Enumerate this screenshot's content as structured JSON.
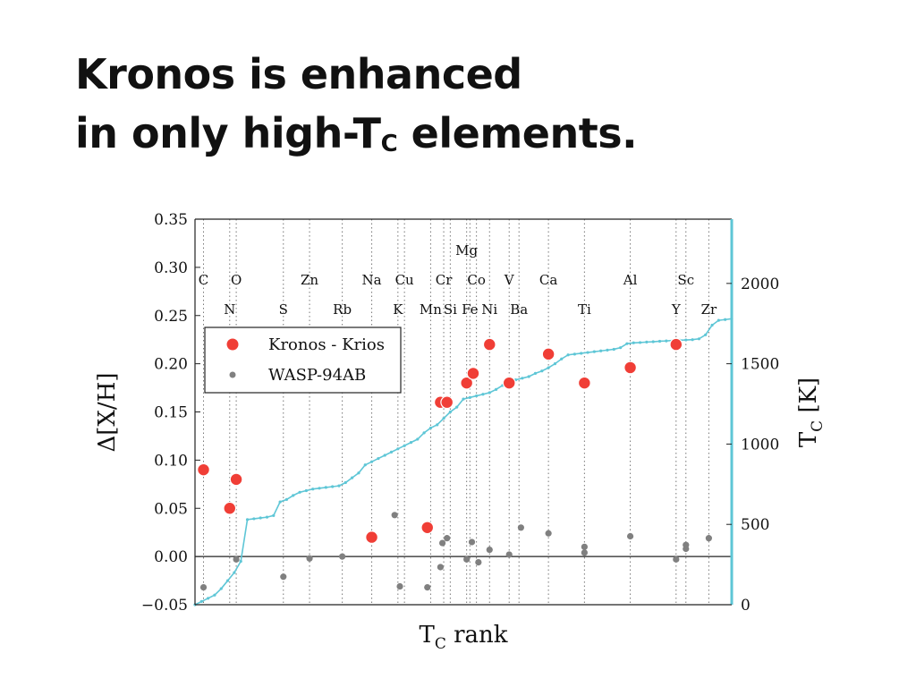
{
  "slide": {
    "title_line1": "Kronos is enhanced",
    "title_line2_pre": "in only high-T",
    "title_line2_sub": "C",
    "title_line2_post": " elements."
  },
  "chart_data": {
    "type": "scatter",
    "xlabel": "T",
    "xlabel_sub": "C",
    "xlabel_post": " rank",
    "ylabel": "Δ[X/H]",
    "ylabel_right": "T",
    "ylabel_right_sub": "C",
    "ylabel_right_post": " [K]",
    "ylim": [
      -0.05,
      0.35
    ],
    "yticks": [
      -0.05,
      0.0,
      0.05,
      0.1,
      0.15,
      0.2,
      0.25,
      0.3,
      0.35
    ],
    "ytick_labels": [
      "−0.05",
      "0.00",
      "0.05",
      "0.10",
      "0.15",
      "0.20",
      "0.25",
      "0.30",
      "0.35"
    ],
    "y2lim": [
      0,
      2400
    ],
    "y2ticks": [
      0,
      500,
      1000,
      1500,
      2000
    ],
    "y2tick_labels": [
      "0",
      "500",
      "1000",
      "1500",
      "2000"
    ],
    "xlim": [
      0,
      82
    ],
    "zero_line": true,
    "legend": {
      "placement": "upper-left",
      "entries": [
        "Kronos - Krios",
        "WASP-94AB"
      ]
    },
    "element_columns": [
      {
        "label": "C",
        "rank": 1.3,
        "row": 1
      },
      {
        "label": "N",
        "rank": 5.3,
        "row": 3
      },
      {
        "label": "O",
        "rank": 6.3,
        "row": 1
      },
      {
        "label": "S",
        "rank": 13.5,
        "row": 3
      },
      {
        "label": "Zn",
        "rank": 17.5,
        "row": 1
      },
      {
        "label": "Rb",
        "rank": 22.5,
        "row": 3
      },
      {
        "label": "Na",
        "rank": 27,
        "row": 1
      },
      {
        "label": "K",
        "rank": 31,
        "row": 3
      },
      {
        "label": "Cu",
        "rank": 32,
        "row": 1
      },
      {
        "label": "Mn",
        "rank": 36,
        "row": 3
      },
      {
        "label": "Cr",
        "rank": 38,
        "row": 1
      },
      {
        "label": "Si",
        "rank": 39,
        "row": 3
      },
      {
        "label": "Mg",
        "rank": 41.5,
        "row": 0
      },
      {
        "label": "Fe",
        "rank": 42,
        "row": 3
      },
      {
        "label": "Co",
        "rank": 43,
        "row": 1
      },
      {
        "label": "Ni",
        "rank": 45,
        "row": 3
      },
      {
        "label": "V",
        "rank": 48,
        "row": 1
      },
      {
        "label": "Ba",
        "rank": 49.5,
        "row": 3
      },
      {
        "label": "Ca",
        "rank": 54,
        "row": 1
      },
      {
        "label": "Ti",
        "rank": 59.5,
        "row": 3
      },
      {
        "label": "Al",
        "rank": 66.5,
        "row": 1
      },
      {
        "label": "Y",
        "rank": 73.5,
        "row": 3
      },
      {
        "label": "Sc",
        "rank": 75,
        "row": 1
      },
      {
        "label": "Zr",
        "rank": 78.5,
        "row": 3
      }
    ],
    "series": [
      {
        "name": "Kronos - Krios",
        "color": "#f03e36",
        "points": [
          {
            "x": 1.3,
            "y": 0.09
          },
          {
            "x": 5.3,
            "y": 0.05
          },
          {
            "x": 6.3,
            "y": 0.08
          },
          {
            "x": 27,
            "y": 0.02
          },
          {
            "x": 35.5,
            "y": 0.03
          },
          {
            "x": 37.5,
            "y": 0.16
          },
          {
            "x": 38.5,
            "y": 0.16
          },
          {
            "x": 41.5,
            "y": 0.18
          },
          {
            "x": 42.5,
            "y": 0.19
          },
          {
            "x": 45,
            "y": 0.22
          },
          {
            "x": 48,
            "y": 0.18
          },
          {
            "x": 54,
            "y": 0.21
          },
          {
            "x": 59.5,
            "y": 0.18
          },
          {
            "x": 66.5,
            "y": 0.196
          },
          {
            "x": 73.5,
            "y": 0.22
          }
        ]
      },
      {
        "name": "WASP-94AB",
        "color": "#808080",
        "points": [
          {
            "x": 1.3,
            "y": -0.032
          },
          {
            "x": 6.3,
            "y": -0.003
          },
          {
            "x": 13.5,
            "y": -0.021
          },
          {
            "x": 17.5,
            "y": -0.002
          },
          {
            "x": 22.5,
            "y": 0.0
          },
          {
            "x": 30.5,
            "y": 0.043
          },
          {
            "x": 31.3,
            "y": -0.031
          },
          {
            "x": 35.5,
            "y": -0.032
          },
          {
            "x": 37.5,
            "y": -0.011
          },
          {
            "x": 37.8,
            "y": 0.014
          },
          {
            "x": 38.5,
            "y": 0.019
          },
          {
            "x": 41.5,
            "y": -0.003
          },
          {
            "x": 42.3,
            "y": 0.015
          },
          {
            "x": 43.3,
            "y": -0.006
          },
          {
            "x": 45,
            "y": 0.007
          },
          {
            "x": 48,
            "y": 0.002
          },
          {
            "x": 49.8,
            "y": 0.03
          },
          {
            "x": 54,
            "y": 0.024
          },
          {
            "x": 59.5,
            "y": 0.01
          },
          {
            "x": 59.5,
            "y": 0.004
          },
          {
            "x": 66.5,
            "y": 0.021
          },
          {
            "x": 73.5,
            "y": -0.003
          },
          {
            "x": 75,
            "y": 0.012
          },
          {
            "x": 75,
            "y": 0.008
          },
          {
            "x": 78.5,
            "y": 0.019
          }
        ]
      },
      {
        "name": "",
        "axis": "right",
        "color": "#5ec6d6",
        "x": [
          0,
          1,
          2,
          3,
          4,
          5,
          6,
          7,
          8,
          9,
          10,
          11,
          12,
          13,
          14,
          15,
          16,
          17,
          18,
          19,
          20,
          21,
          22,
          23,
          24,
          25,
          26,
          27,
          28,
          29,
          30,
          31,
          32,
          33,
          34,
          35,
          36,
          37,
          38,
          39,
          40,
          41,
          42,
          43,
          44,
          45,
          46,
          47,
          48,
          49,
          50,
          51,
          52,
          53,
          54,
          55,
          56,
          57,
          58,
          59,
          60,
          61,
          62,
          63,
          64,
          65,
          66,
          67,
          68,
          69,
          70,
          71,
          72,
          73,
          74,
          75,
          76,
          77,
          78,
          79,
          80,
          81,
          82
        ],
        "y": [
          0,
          20,
          40,
          60,
          100,
          150,
          200,
          270,
          530,
          535,
          540,
          545,
          555,
          640,
          655,
          680,
          700,
          710,
          720,
          725,
          730,
          735,
          740,
          760,
          790,
          820,
          870,
          890,
          910,
          930,
          950,
          970,
          990,
          1010,
          1030,
          1070,
          1100,
          1120,
          1160,
          1200,
          1230,
          1280,
          1290,
          1300,
          1310,
          1320,
          1340,
          1365,
          1385,
          1400,
          1410,
          1420,
          1440,
          1455,
          1475,
          1500,
          1530,
          1555,
          1560,
          1565,
          1570,
          1575,
          1580,
          1585,
          1590,
          1600,
          1625,
          1630,
          1632,
          1635,
          1637,
          1640,
          1642,
          1645,
          1647,
          1648,
          1650,
          1655,
          1680,
          1740,
          1770,
          1775,
          1780
        ]
      }
    ]
  }
}
